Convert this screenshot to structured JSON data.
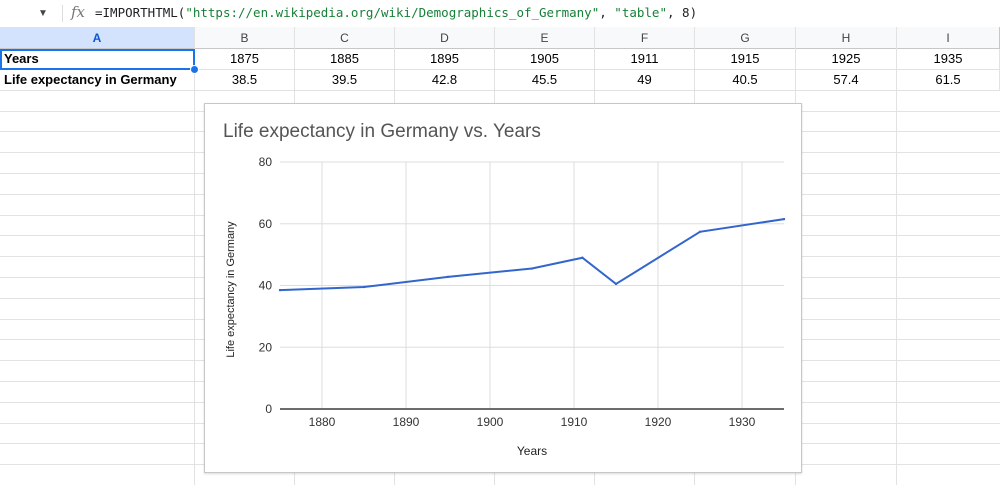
{
  "formula_bar": {
    "formula_prefix": "=IMPORTHTML(",
    "formula_url": "\"https://en.wikipedia.org/wiki/Demographics_of_Germany\"",
    "formula_sep1": ", ",
    "formula_type": "\"table\"",
    "formula_sep2": ", ",
    "formula_index": "8",
    "formula_close": ")",
    "fx_label": "fx"
  },
  "columns": [
    "A",
    "B",
    "C",
    "D",
    "E",
    "F",
    "G",
    "H",
    "I"
  ],
  "rows": [
    {
      "label": "Years",
      "values": [
        "1875",
        "1885",
        "1895",
        "1905",
        "1911",
        "1915",
        "1925",
        "1935"
      ]
    },
    {
      "label": "Life expectancy in Germany",
      "values": [
        "38.5",
        "39.5",
        "42.8",
        "45.5",
        "49",
        "40.5",
        "57.4",
        "61.5"
      ]
    }
  ],
  "chart_data": {
    "type": "line",
    "title": "Life expectancy in Germany vs. Years",
    "xlabel": "Years",
    "ylabel": "Life expectancy in Germany",
    "x": [
      1875,
      1885,
      1895,
      1905,
      1911,
      1915,
      1925,
      1935
    ],
    "series": [
      {
        "values": [
          38.5,
          39.5,
          42.8,
          45.5,
          49,
          40.5,
          57.4,
          61.5
        ]
      }
    ],
    "xlim": [
      1875,
      1935
    ],
    "ylim": [
      0,
      80
    ],
    "xticks": [
      1880,
      1890,
      1900,
      1910,
      1920,
      1930
    ],
    "yticks": [
      0,
      20,
      40,
      60,
      80
    ],
    "grid": true,
    "line_color": "#3366cc"
  }
}
